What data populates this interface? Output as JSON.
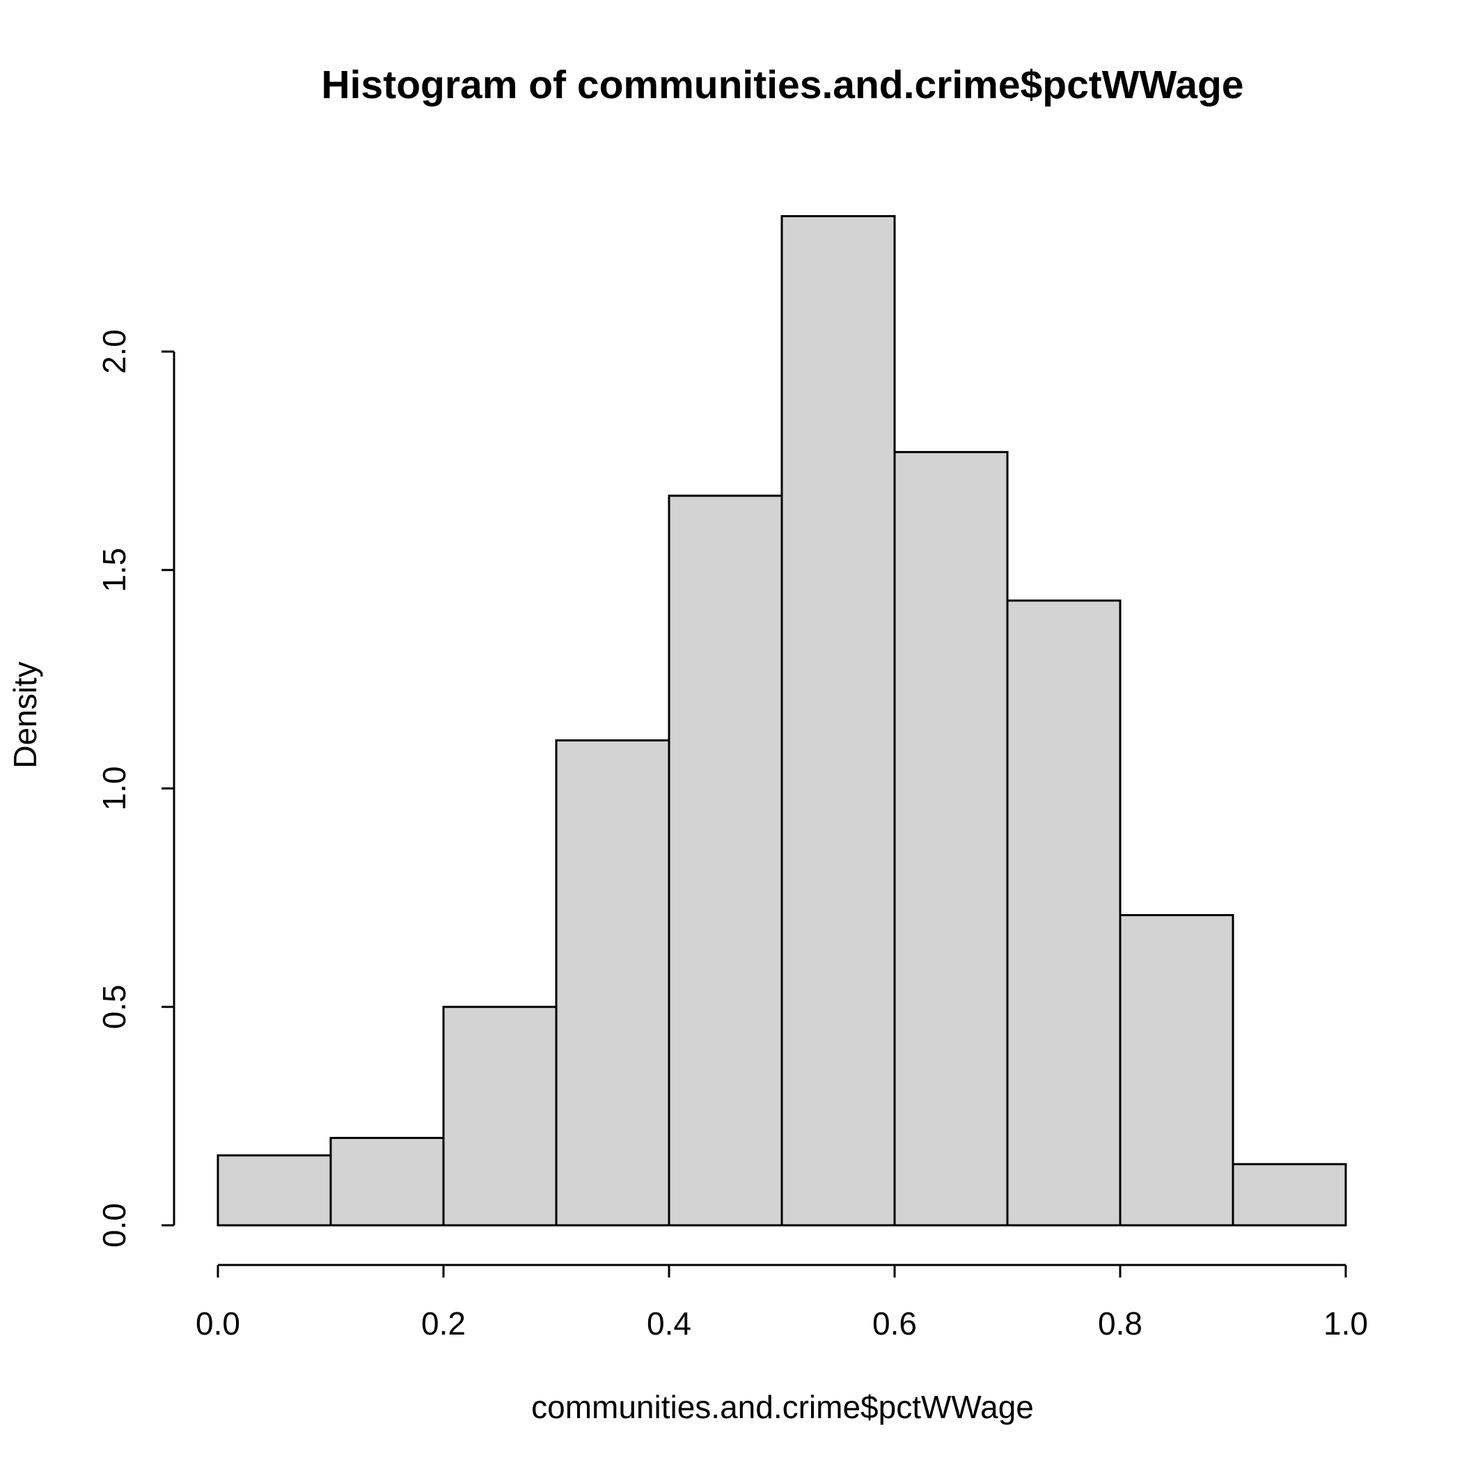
{
  "chart_data": {
    "type": "bar",
    "title": "Histogram of communities.and.crime$pctWWage",
    "xlabel": "communities.and.crime$pctWWage",
    "ylabel": "Density",
    "bins": [
      {
        "start": 0.0,
        "end": 0.1,
        "density": 0.16
      },
      {
        "start": 0.1,
        "end": 0.2,
        "density": 0.2
      },
      {
        "start": 0.2,
        "end": 0.3,
        "density": 0.5
      },
      {
        "start": 0.3,
        "end": 0.4,
        "density": 1.11
      },
      {
        "start": 0.4,
        "end": 0.5,
        "density": 1.67
      },
      {
        "start": 0.5,
        "end": 0.6,
        "density": 2.31
      },
      {
        "start": 0.6,
        "end": 0.7,
        "density": 1.77
      },
      {
        "start": 0.7,
        "end": 0.8,
        "density": 1.43
      },
      {
        "start": 0.8,
        "end": 0.9,
        "density": 0.71
      },
      {
        "start": 0.9,
        "end": 1.0,
        "density": 0.14
      }
    ],
    "xlim": [
      0.0,
      1.0
    ],
    "ylim": [
      0.0,
      2.31
    ],
    "x_ticks": [
      0.0,
      0.2,
      0.4,
      0.6,
      0.8,
      1.0
    ],
    "x_tick_labels": [
      "0.0",
      "0.2",
      "0.4",
      "0.6",
      "0.8",
      "1.0"
    ],
    "y_ticks": [
      0.0,
      0.5,
      1.0,
      1.5,
      2.0
    ],
    "y_tick_labels": [
      "0.0",
      "0.5",
      "1.0",
      "1.5",
      "2.0"
    ],
    "grid": false,
    "colors": {
      "bar_fill": "#d3d3d3",
      "bar_stroke": "#000000"
    }
  }
}
